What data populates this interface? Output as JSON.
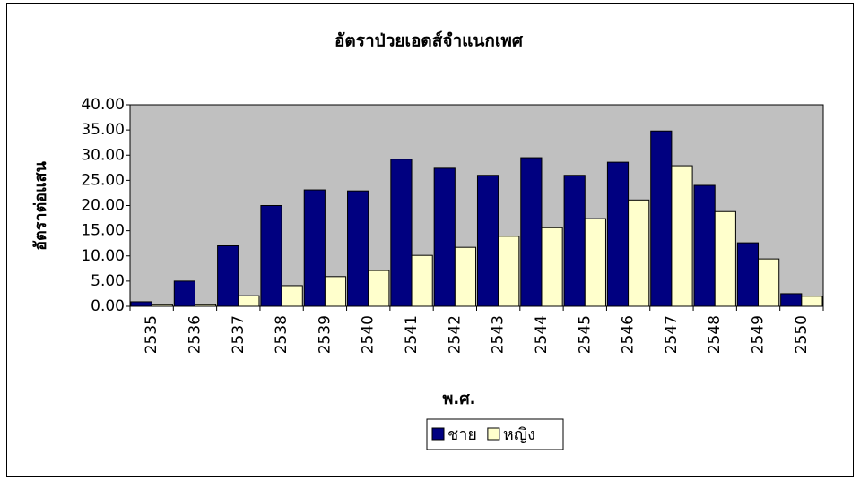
{
  "chart_data": {
    "type": "bar",
    "title": "อัตราป่วยเอดส์จำแนกเพศ",
    "x_label": "พ.ศ.",
    "y_label": "อัตราต่อแสน",
    "categories": [
      "2535",
      "2536",
      "2537",
      "2538",
      "2539",
      "2540",
      "2541",
      "2542",
      "2543",
      "2544",
      "2545",
      "2546",
      "2547",
      "2548",
      "2549",
      "2550"
    ],
    "series": [
      {
        "name": "ชาย",
        "color": "#000080",
        "values": [
          0.9,
          5.0,
          12.0,
          20.0,
          23.1,
          22.9,
          29.2,
          27.4,
          26.0,
          29.5,
          26.0,
          28.6,
          34.8,
          24.0,
          12.6,
          2.5
        ]
      },
      {
        "name": "หญิง",
        "color": "#ffffcc",
        "values": [
          0.3,
          0.3,
          2.1,
          4.1,
          5.9,
          7.1,
          10.1,
          11.7,
          13.9,
          15.6,
          17.4,
          21.1,
          27.9,
          18.8,
          9.4,
          2.0
        ]
      }
    ],
    "ylim": [
      0,
      40
    ],
    "yticks": [
      {
        "value": 0,
        "label": "0.00"
      },
      {
        "value": 5,
        "label": "5.00"
      },
      {
        "value": 10,
        "label": "10.00"
      },
      {
        "value": 15,
        "label": "15.00"
      },
      {
        "value": 20,
        "label": "20.00"
      },
      {
        "value": 25,
        "label": "25.00"
      },
      {
        "value": 30,
        "label": "30.00"
      },
      {
        "value": 35,
        "label": "35.00"
      },
      {
        "value": 40,
        "label": "40.00"
      }
    ],
    "plot_background": "#c0c0c0",
    "legend": "bottom"
  }
}
